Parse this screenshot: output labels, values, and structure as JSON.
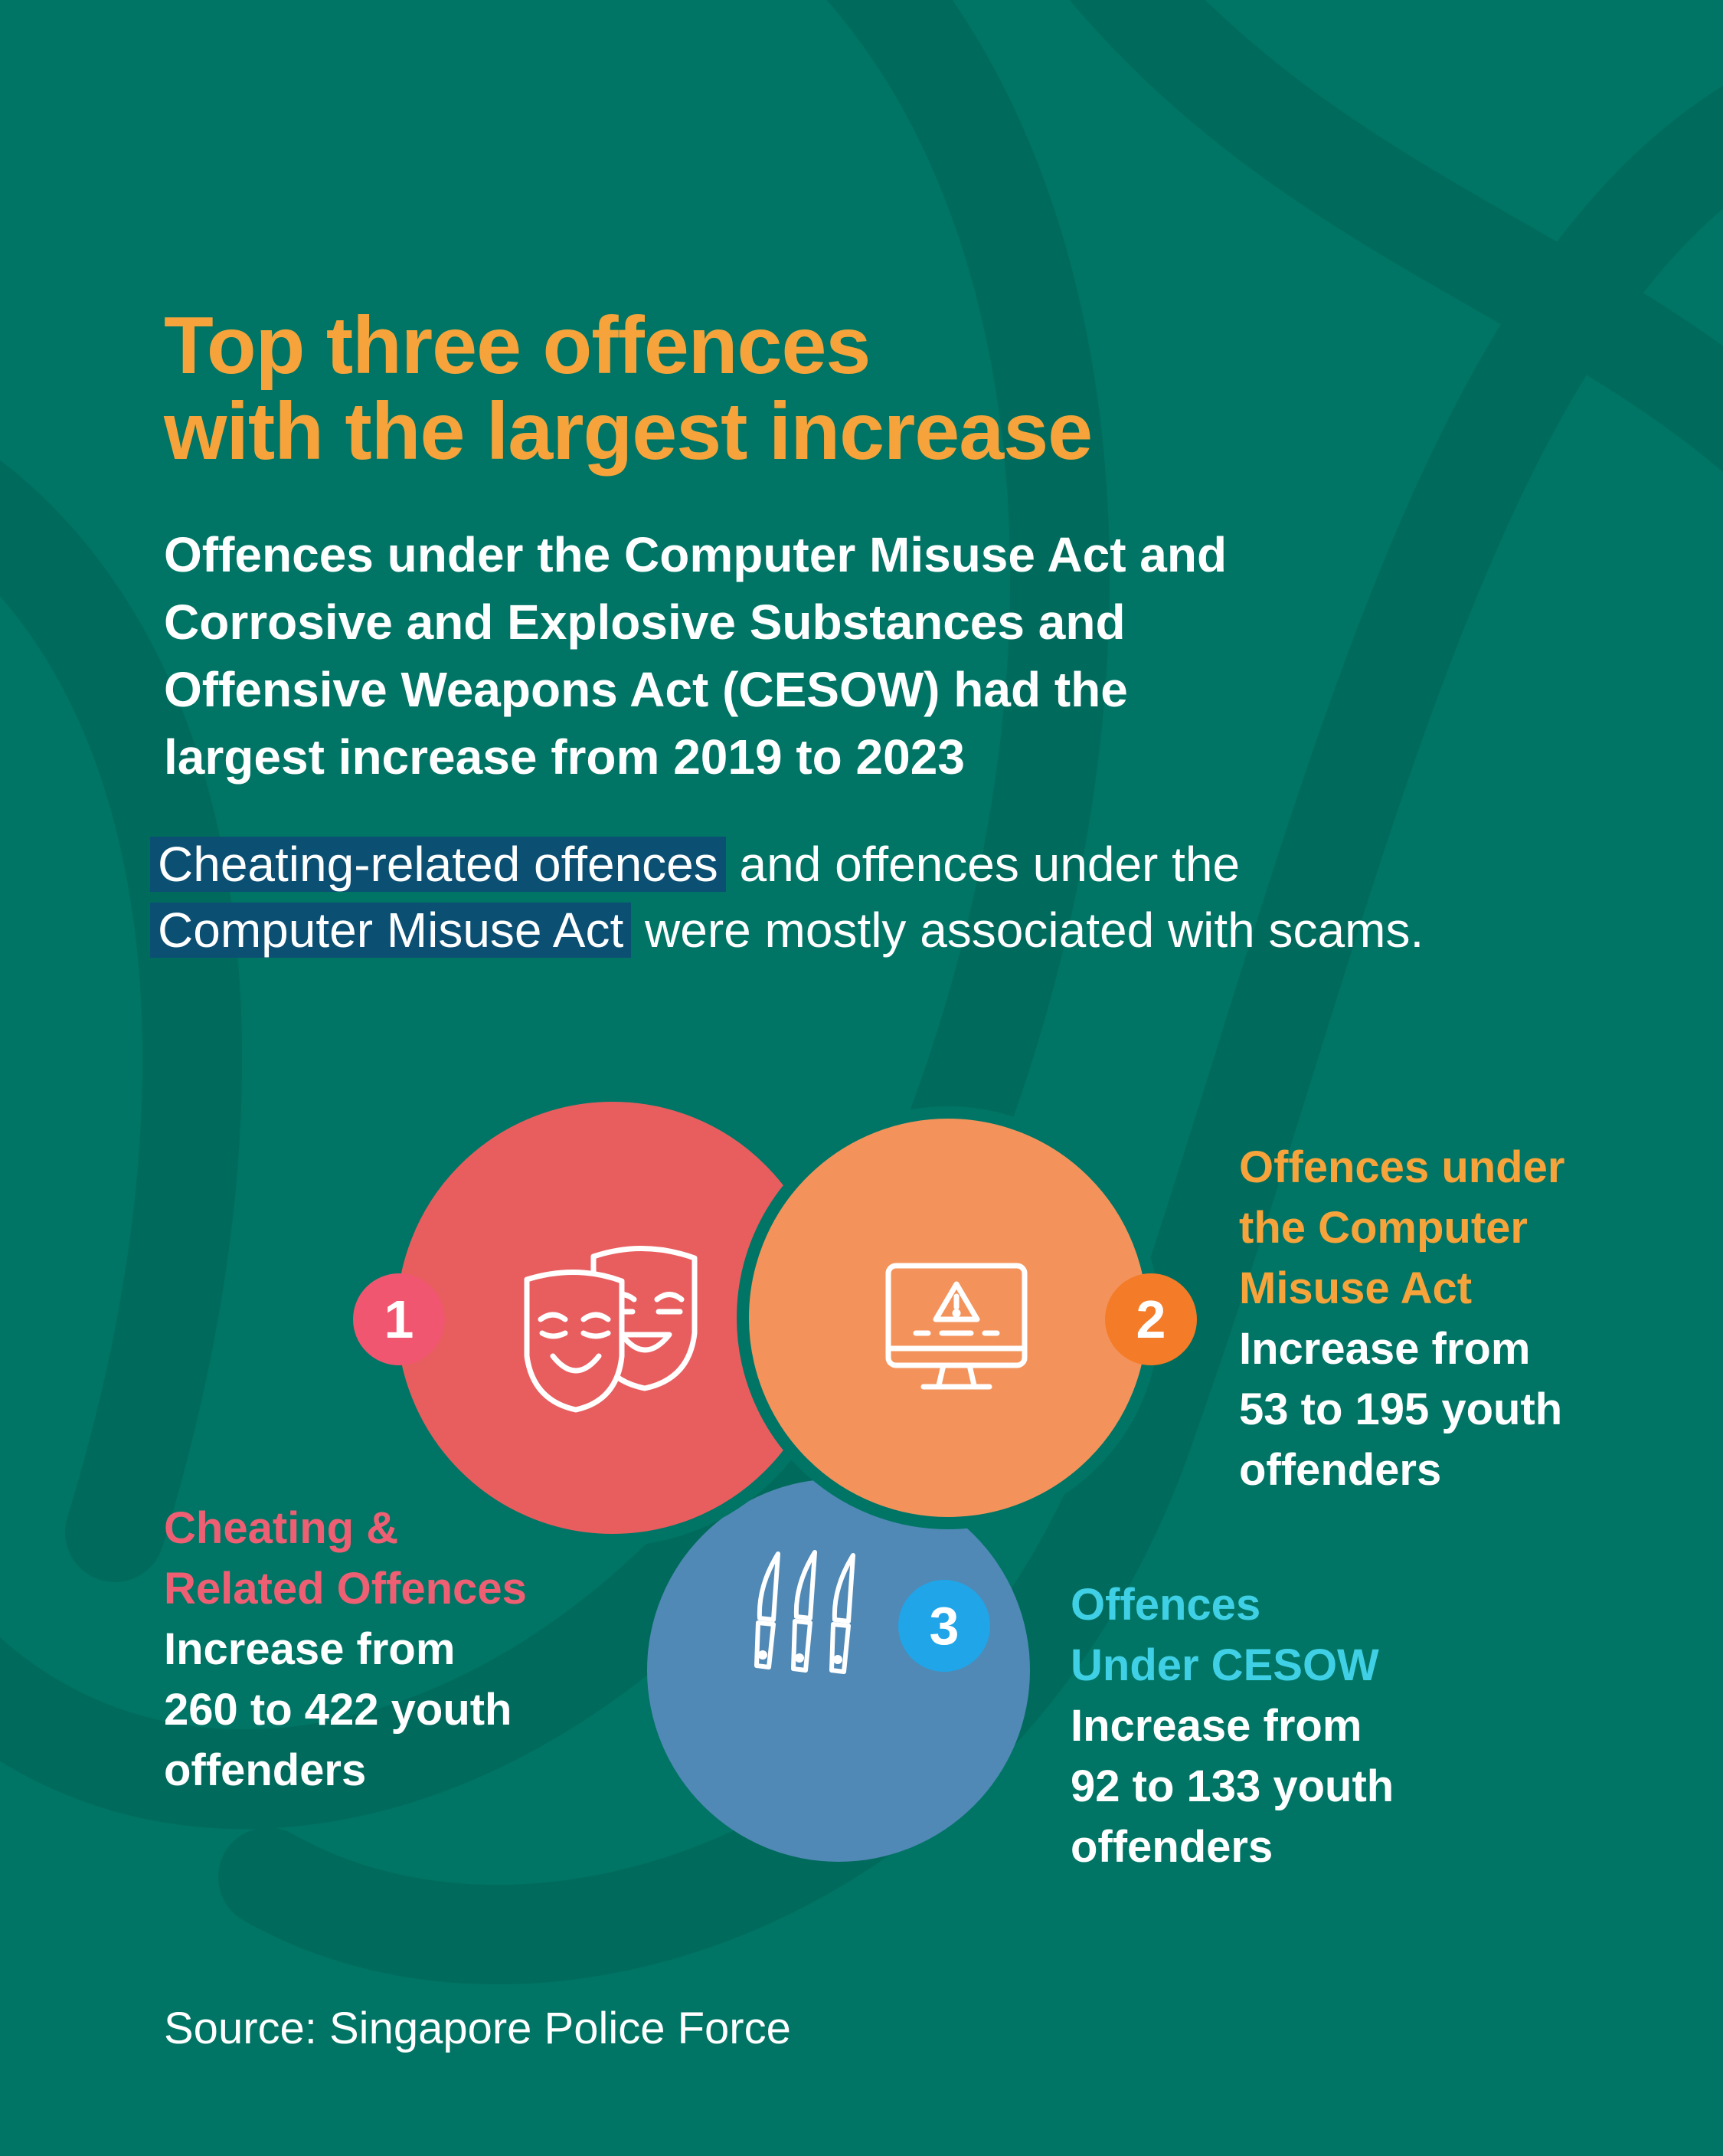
{
  "title_lines": [
    "Top three offences",
    "with the largest increase"
  ],
  "subtitle_lines": [
    "Offences under the Computer Misuse Act and",
    "Corrosive and Explosive Substances and",
    "Offensive Weapons Act (CESOW) had the",
    "largest increase from 2019 to 2023"
  ],
  "note": {
    "highlight_1": "Cheating-related offences",
    "text_1": " and offences under the",
    "highlight_2": "Computer Misuse Act",
    "text_2": " were mostly associated with scams."
  },
  "offences": [
    {
      "rank": "1",
      "name_lines": [
        "Cheating &",
        "Related Offences"
      ],
      "stat_lines": [
        "Increase from",
        "260 to 422 youth",
        "offenders"
      ],
      "icon": "theatre-masks-icon",
      "color": "#e85e5f",
      "label_color": "#ef5f73",
      "badge_color": "#f0566f",
      "from": 260,
      "to": 422
    },
    {
      "rank": "2",
      "name_lines": [
        "Offences under",
        "the Computer",
        "Misuse Act"
      ],
      "stat_lines": [
        "Increase from",
        "53 to 195 youth",
        "offenders"
      ],
      "icon": "computer-warning-icon",
      "color": "#f3935b",
      "label_color": "#f5a33a",
      "badge_color": "#f47b27",
      "from": 53,
      "to": 195
    },
    {
      "rank": "3",
      "name_lines": [
        "Offences",
        "Under CESOW"
      ],
      "stat_lines": [
        "Increase from",
        "92 to 133 youth",
        "offenders"
      ],
      "icon": "knives-icon",
      "color": "#5089b5",
      "label_color": "#3fd0e6",
      "badge_color": "#20a5e8",
      "from": 92,
      "to": 133
    }
  ],
  "source": "Source: Singapore Police Force",
  "colors": {
    "background": "#007565",
    "title": "#f5a33a",
    "highlight": "#0b4f73"
  }
}
